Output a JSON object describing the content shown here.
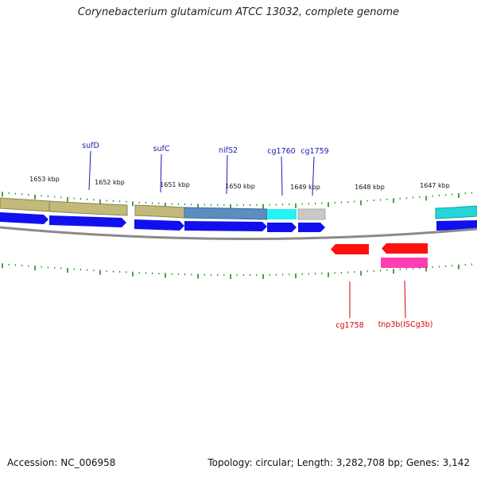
{
  "title": "Corynebacterium glutamicum ATCC 13032, complete genome",
  "footer": {
    "accession": "Accession: NC_006958",
    "summary": "Topology: circular; Length: 3,282,708 bp; Genes: 3,142"
  },
  "colors": {
    "backbone": "#888888",
    "tick": "#1a8a1a",
    "cds": "#1010ee",
    "reverse_cds": "#ff1010",
    "forward_label": "#1a1ab0",
    "reverse_label": "#d40000",
    "pseudo": "#ff3cb4"
  },
  "kbp_labels": [
    "1653 kbp",
    "1652 kbp",
    "1651 kbp",
    "1650 kbp",
    "1649 kbp",
    "1648 kbp",
    "1647 kbp"
  ],
  "forward_genes": [
    {
      "name": "sufD",
      "color": "#c2b97a"
    },
    {
      "name": "sufC",
      "color": "#c2b97a"
    },
    {
      "name": "nifS2",
      "color": "#5a8ec0"
    },
    {
      "name": "cg1760",
      "color": "#24f2f4"
    },
    {
      "name": "cg1759",
      "color": "#c8c8c8"
    }
  ],
  "reverse_genes": [
    {
      "name": "cg1758"
    },
    {
      "name": "tnp3b(ISCg3b)"
    }
  ]
}
